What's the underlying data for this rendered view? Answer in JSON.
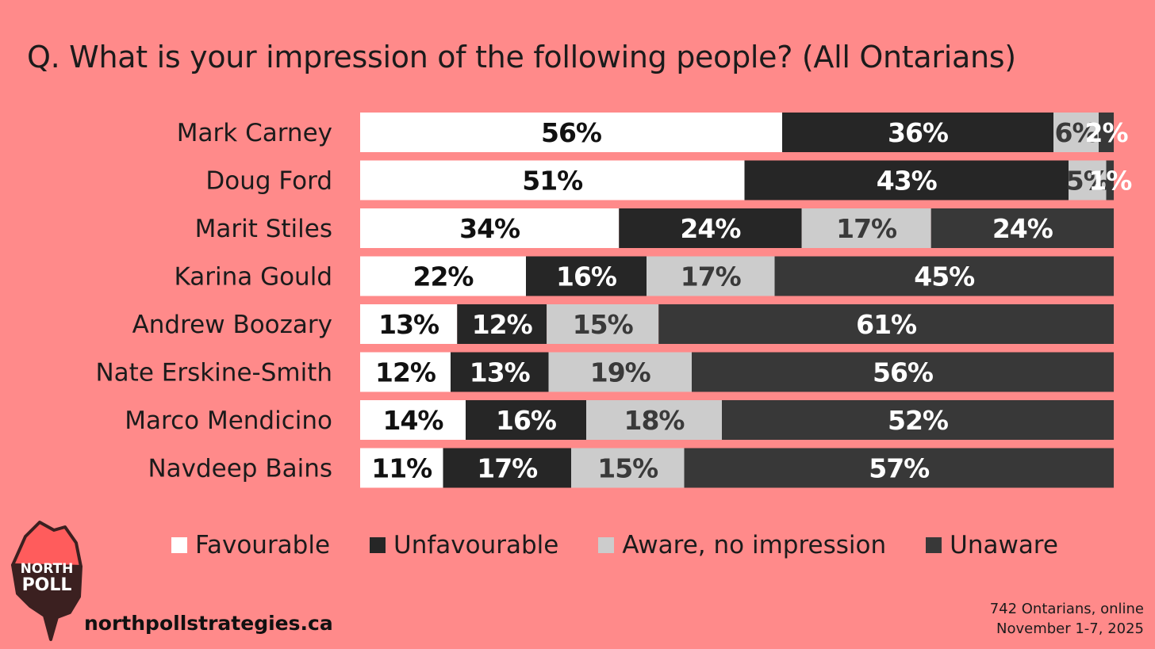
{
  "chart_data": {
    "type": "bar",
    "orientation": "horizontal",
    "stacked": true,
    "title": "Q. What is your impression of the following people? (All Ontarians)",
    "categories": [
      "Mark Carney",
      "Doug Ford",
      "Marit Stiles",
      "Karina Gould",
      "Andrew Boozary",
      "Nate Erskine-Smith",
      "Marco Mendicino",
      "Navdeep Bains"
    ],
    "series": [
      {
        "name": "Favourable",
        "color": "#ffffff",
        "text_color": "#111111",
        "values": [
          56,
          51,
          34,
          22,
          13,
          12,
          14,
          11
        ]
      },
      {
        "name": "Unfavourable",
        "color": "#262626",
        "text_color": "#ffffff",
        "values": [
          36,
          43,
          24,
          16,
          12,
          13,
          16,
          17
        ]
      },
      {
        "name": "Aware, no impression",
        "color": "#cccccc",
        "text_color": "#3a3a3a",
        "values": [
          6,
          5,
          17,
          17,
          15,
          19,
          18,
          15
        ]
      },
      {
        "name": "Unaware",
        "color": "#383838",
        "text_color": "#ffffff",
        "values": [
          2,
          1,
          24,
          45,
          61,
          56,
          52,
          57
        ]
      }
    ],
    "value_suffix": "%",
    "legend_position": "bottom"
  },
  "branding": {
    "logo_text_1": "NORTH",
    "logo_text_2": "POLL",
    "website": "northpollstrategies.ca"
  },
  "source": {
    "line1": "742 Ontarians, online",
    "line2": "November 1-7, 2025"
  }
}
